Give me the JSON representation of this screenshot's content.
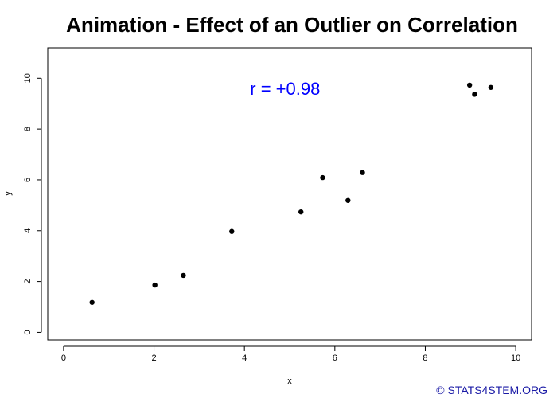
{
  "chart_data": {
    "type": "scatter",
    "title": "Animation - Effect of an Outlier on Correlation",
    "xlabel": "x",
    "ylabel": "y",
    "xlim": [
      -0.35,
      10.35
    ],
    "ylim": [
      -0.3,
      11.2
    ],
    "xticks": [
      "0",
      "2",
      "4",
      "6",
      "8",
      "10"
    ],
    "yticks": [
      "0",
      "2",
      "4",
      "6",
      "8",
      "10"
    ],
    "grid": false,
    "points": [
      {
        "x": 0.63,
        "y": 1.18
      },
      {
        "x": 2.02,
        "y": 1.86
      },
      {
        "x": 2.65,
        "y": 2.24
      },
      {
        "x": 3.72,
        "y": 3.97
      },
      {
        "x": 5.25,
        "y": 4.74
      },
      {
        "x": 5.73,
        "y": 6.09
      },
      {
        "x": 6.29,
        "y": 5.19
      },
      {
        "x": 6.61,
        "y": 6.29
      },
      {
        "x": 8.98,
        "y": 9.73
      },
      {
        "x": 9.09,
        "y": 9.37
      },
      {
        "x": 9.45,
        "y": 9.64
      }
    ],
    "annotation": {
      "text": "r = +0.98",
      "x": 4.9,
      "y": 9.6,
      "color": "#0000ff"
    },
    "point_color": "#000000"
  },
  "credit": {
    "text": "© STATS4STEM.ORG",
    "color": "#1a1aa6"
  }
}
